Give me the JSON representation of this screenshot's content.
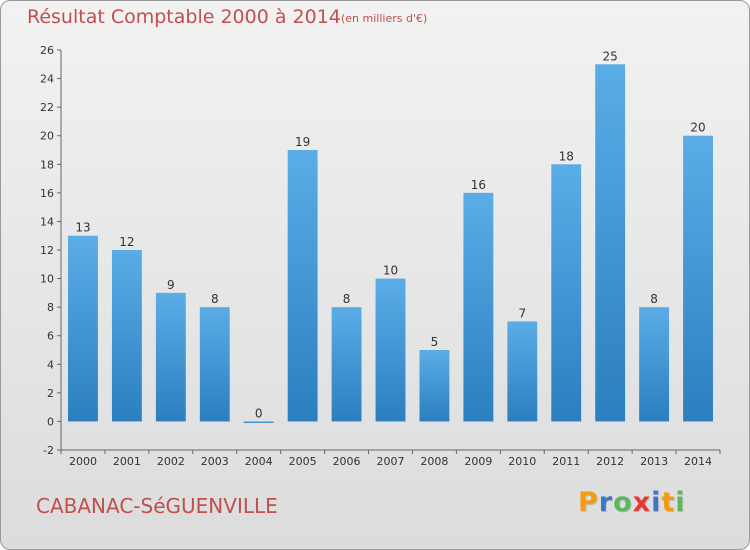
{
  "header": {
    "title": "Résultat Comptable 2000 à 2014",
    "subtitle": "(en milliers d'€)"
  },
  "footer": {
    "commune": "CABANAC-SéGUENVILLE",
    "logo_letters": [
      "P",
      "r",
      "o",
      "x",
      "i",
      "t",
      "i"
    ],
    "logo_colors": [
      "#f39c12",
      "#3a78c3",
      "#5cb85c",
      "#e53935",
      "#3a78c3",
      "#f39c12",
      "#5cb85c"
    ]
  },
  "chart_data": {
    "type": "bar",
    "title": "Résultat Comptable 2000 à 2014",
    "subtitle": "(en milliers d'€)",
    "categories": [
      "2000",
      "2001",
      "2002",
      "2003",
      "2004",
      "2005",
      "2006",
      "2007",
      "2008",
      "2009",
      "2010",
      "2011",
      "2012",
      "2013",
      "2014"
    ],
    "values": [
      13,
      12,
      9,
      8,
      0,
      19,
      8,
      10,
      5,
      16,
      7,
      18,
      25,
      8,
      20
    ],
    "xlabel": "",
    "ylabel": "",
    "ylim": [
      -2,
      26
    ],
    "yticks": [
      -2,
      0,
      2,
      4,
      6,
      8,
      10,
      12,
      14,
      16,
      18,
      20,
      22,
      24,
      26
    ],
    "grid": false,
    "bar_color_top": "#5aade6",
    "bar_color_bottom": "#2a7fc0"
  }
}
